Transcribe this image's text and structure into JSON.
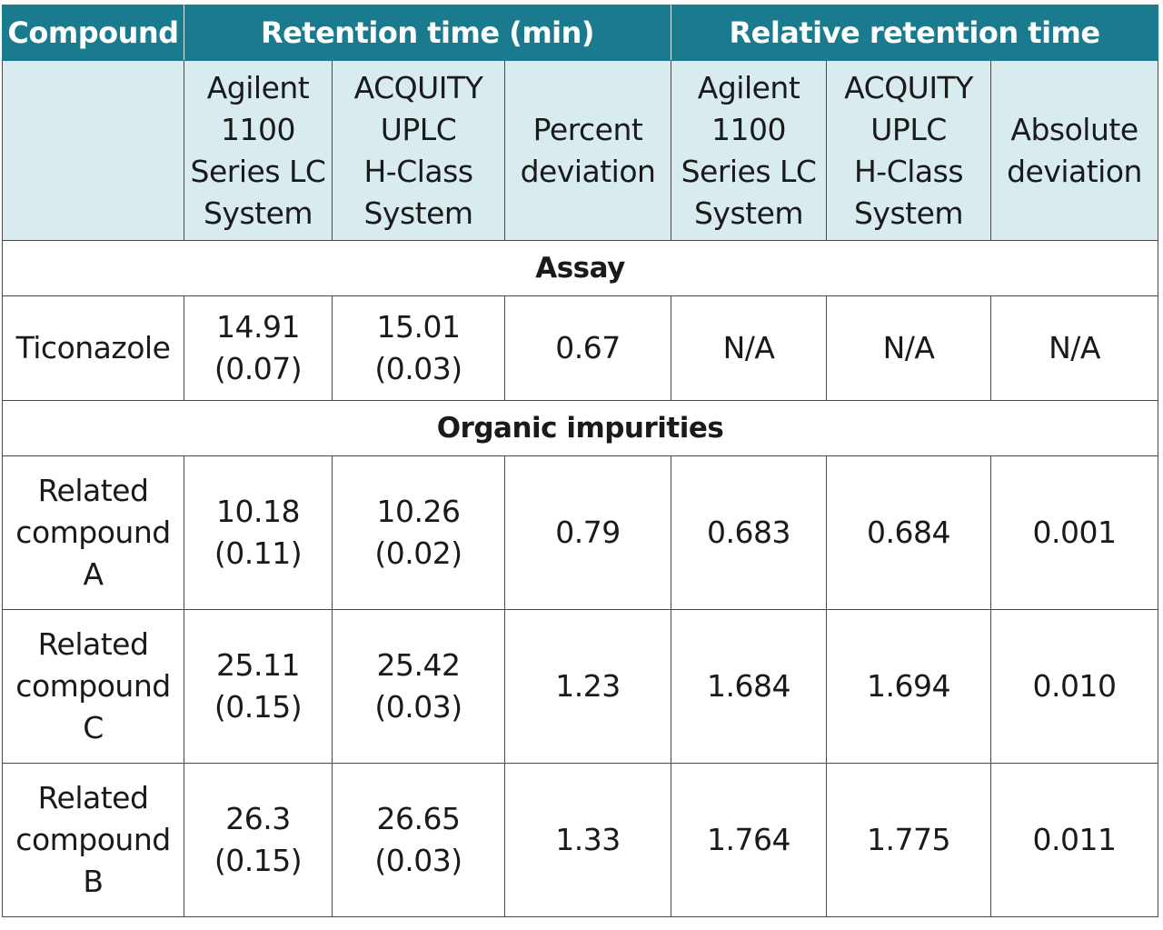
{
  "header": {
    "compound": "Compound",
    "retention_time": "Retention time (min)",
    "relative_retention_time": "Relative retention time"
  },
  "subheader": {
    "agilent_rt": [
      "Agilent",
      "1100",
      "Series LC",
      "System"
    ],
    "acquity_rt": [
      "ACQUITY",
      "UPLC",
      "H-Class",
      "System"
    ],
    "percent_deviation": [
      "Percent",
      "deviation"
    ],
    "agilent_rrt": [
      "Agilent",
      "1100",
      "Series LC",
      "System"
    ],
    "acquity_rrt": [
      "ACQUITY",
      "UPLC",
      "H-Class",
      "System"
    ],
    "absolute_deviation": [
      "Absolute",
      "deviation"
    ]
  },
  "sections": {
    "assay": "Assay",
    "organic_impurities": "Organic impurities"
  },
  "assay_rows": [
    {
      "compound": [
        "Ticonazole"
      ],
      "agilent_rt": [
        "14.91",
        "(0.07)"
      ],
      "acquity_rt": [
        "15.01",
        "(0.03)"
      ],
      "percent_deviation": "0.67",
      "agilent_rrt": "N/A",
      "acquity_rrt": "N/A",
      "absolute_deviation": "N/A"
    }
  ],
  "impurity_rows": [
    {
      "compound": [
        "Related",
        "compound",
        "A"
      ],
      "agilent_rt": [
        "10.18",
        "(0.11)"
      ],
      "acquity_rt": [
        "10.26",
        "(0.02)"
      ],
      "percent_deviation": "0.79",
      "agilent_rrt": "0.683",
      "acquity_rrt": "0.684",
      "absolute_deviation": "0.001"
    },
    {
      "compound": [
        "Related",
        "compound",
        "C"
      ],
      "agilent_rt": [
        "25.11",
        "(0.15)"
      ],
      "acquity_rt": [
        "25.42",
        "(0.03)"
      ],
      "percent_deviation": "1.23",
      "agilent_rrt": "1.684",
      "acquity_rrt": "1.694",
      "absolute_deviation": "0.010"
    },
    {
      "compound": [
        "Related",
        "compound",
        "B"
      ],
      "agilent_rt": [
        "26.3",
        "(0.15)"
      ],
      "acquity_rt": [
        "26.65",
        "(0.03)"
      ],
      "percent_deviation": "1.33",
      "agilent_rrt": "1.764",
      "acquity_rrt": "1.775",
      "absolute_deviation": "0.011"
    }
  ],
  "colors": {
    "header_bg": "#1a7b8f",
    "subheader_bg": "#d8ecf0",
    "border": "#4a4a4a"
  }
}
